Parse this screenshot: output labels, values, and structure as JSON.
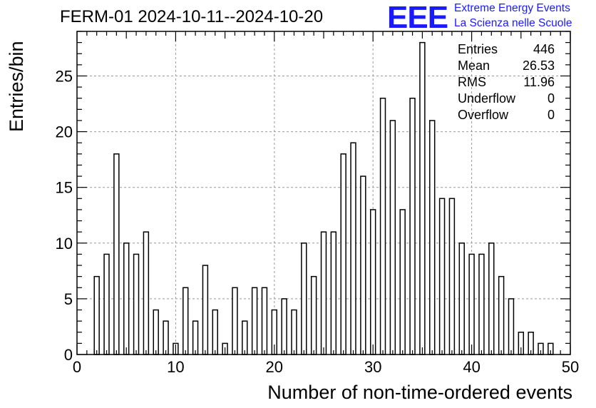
{
  "title": "FERM-01 2024-10-11--2024-10-20",
  "logo": {
    "mark": "EEE",
    "line1": "Extreme Energy Events",
    "line2": "La Scienza nelle Scuole",
    "color": "#1a1aff"
  },
  "stats": [
    {
      "label": "Entries",
      "value": "446"
    },
    {
      "label": "Mean",
      "value": "26.53"
    },
    {
      "label": "RMS",
      "value": "11.96"
    },
    {
      "label": "Underflow",
      "value": "0"
    },
    {
      "label": "Overflow",
      "value": "0"
    }
  ],
  "chart_data": {
    "type": "bar",
    "title": "FERM-01 2024-10-11--2024-10-20",
    "xlabel": "Number of non-time-ordered events",
    "ylabel": "Entries/bin",
    "xlim": [
      0,
      50
    ],
    "ylim": [
      0,
      29
    ],
    "xticks": [
      0,
      10,
      20,
      30,
      40,
      50
    ],
    "yticks": [
      0,
      5,
      10,
      15,
      20,
      25
    ],
    "grid": true,
    "bin_width": 1,
    "bar_width_fraction": 0.5,
    "x": [
      2,
      3,
      4,
      5,
      6,
      7,
      8,
      9,
      10,
      11,
      12,
      13,
      14,
      15,
      16,
      17,
      18,
      19,
      20,
      21,
      22,
      23,
      24,
      25,
      26,
      27,
      28,
      29,
      30,
      31,
      32,
      33,
      34,
      35,
      36,
      37,
      38,
      39,
      40,
      41,
      42,
      43,
      44,
      45,
      46,
      47,
      48
    ],
    "values": [
      7,
      9,
      18,
      10,
      9,
      11,
      4,
      3,
      1,
      6,
      3,
      8,
      4,
      1,
      6,
      3,
      6,
      6,
      4,
      5,
      4,
      10,
      7,
      11,
      11,
      18,
      19,
      16,
      13,
      23,
      21,
      13,
      23,
      28,
      21,
      14,
      14,
      10,
      9,
      9,
      10,
      7,
      5,
      2,
      2,
      1,
      1
    ]
  }
}
